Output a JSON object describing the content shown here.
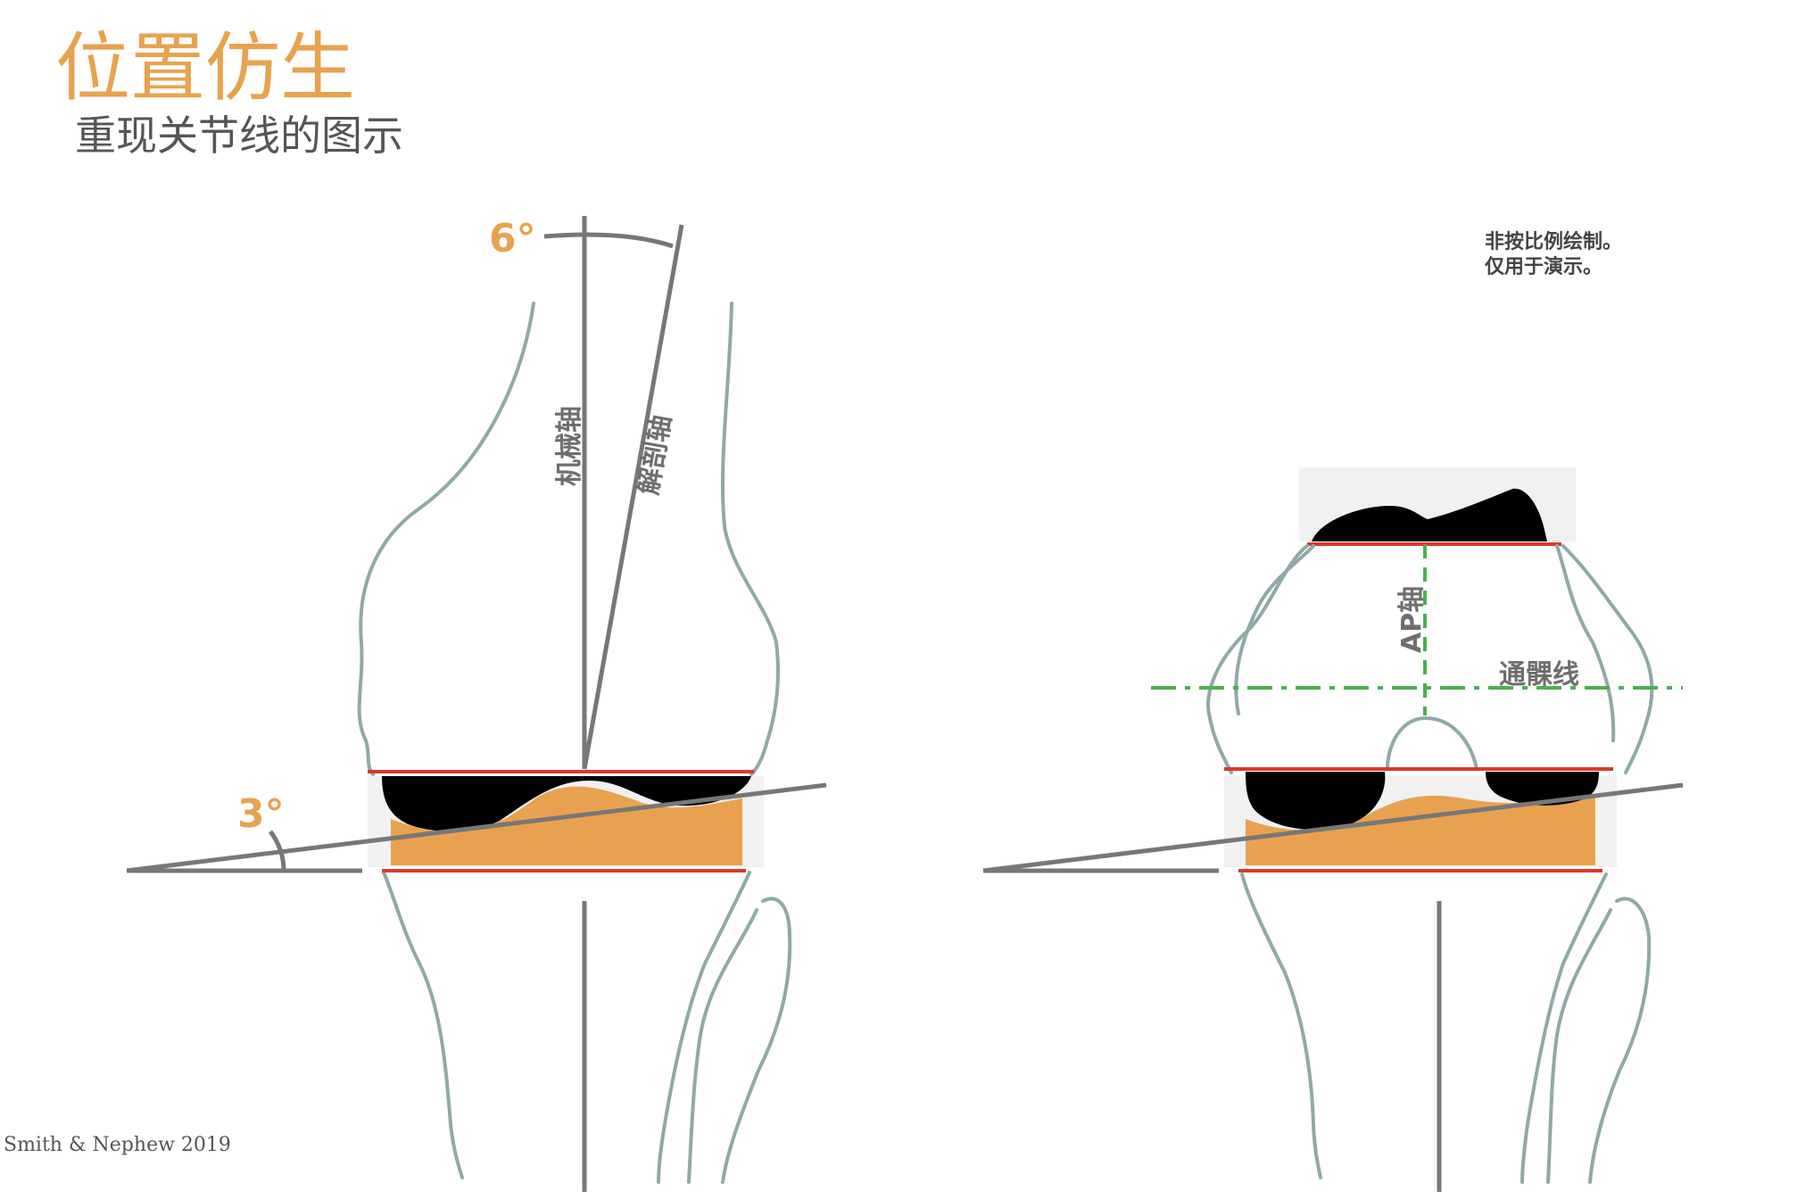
{
  "title": "位置仿生",
  "subtitle": "重现关节线的图示",
  "note": {
    "line1": "非按比例绘制。",
    "line2": "仅用于演示。"
  },
  "copyright": "Smith & Nephew 2019",
  "left_view": {
    "angle_top": "6°",
    "angle_bottom": "3°",
    "mechanical_axis": "机械轴",
    "anatomical_axis": "解剖轴"
  },
  "right_view": {
    "ap_axis": "AP轴",
    "transepicondylar_line": "通髁线"
  },
  "colors": {
    "accent": "#e8a24f",
    "implant": "#000000",
    "cut_line": "#d93a2b",
    "bone_outline": "#8fa9a7",
    "axis": "#777777",
    "guide_dash": "#4caf50"
  }
}
